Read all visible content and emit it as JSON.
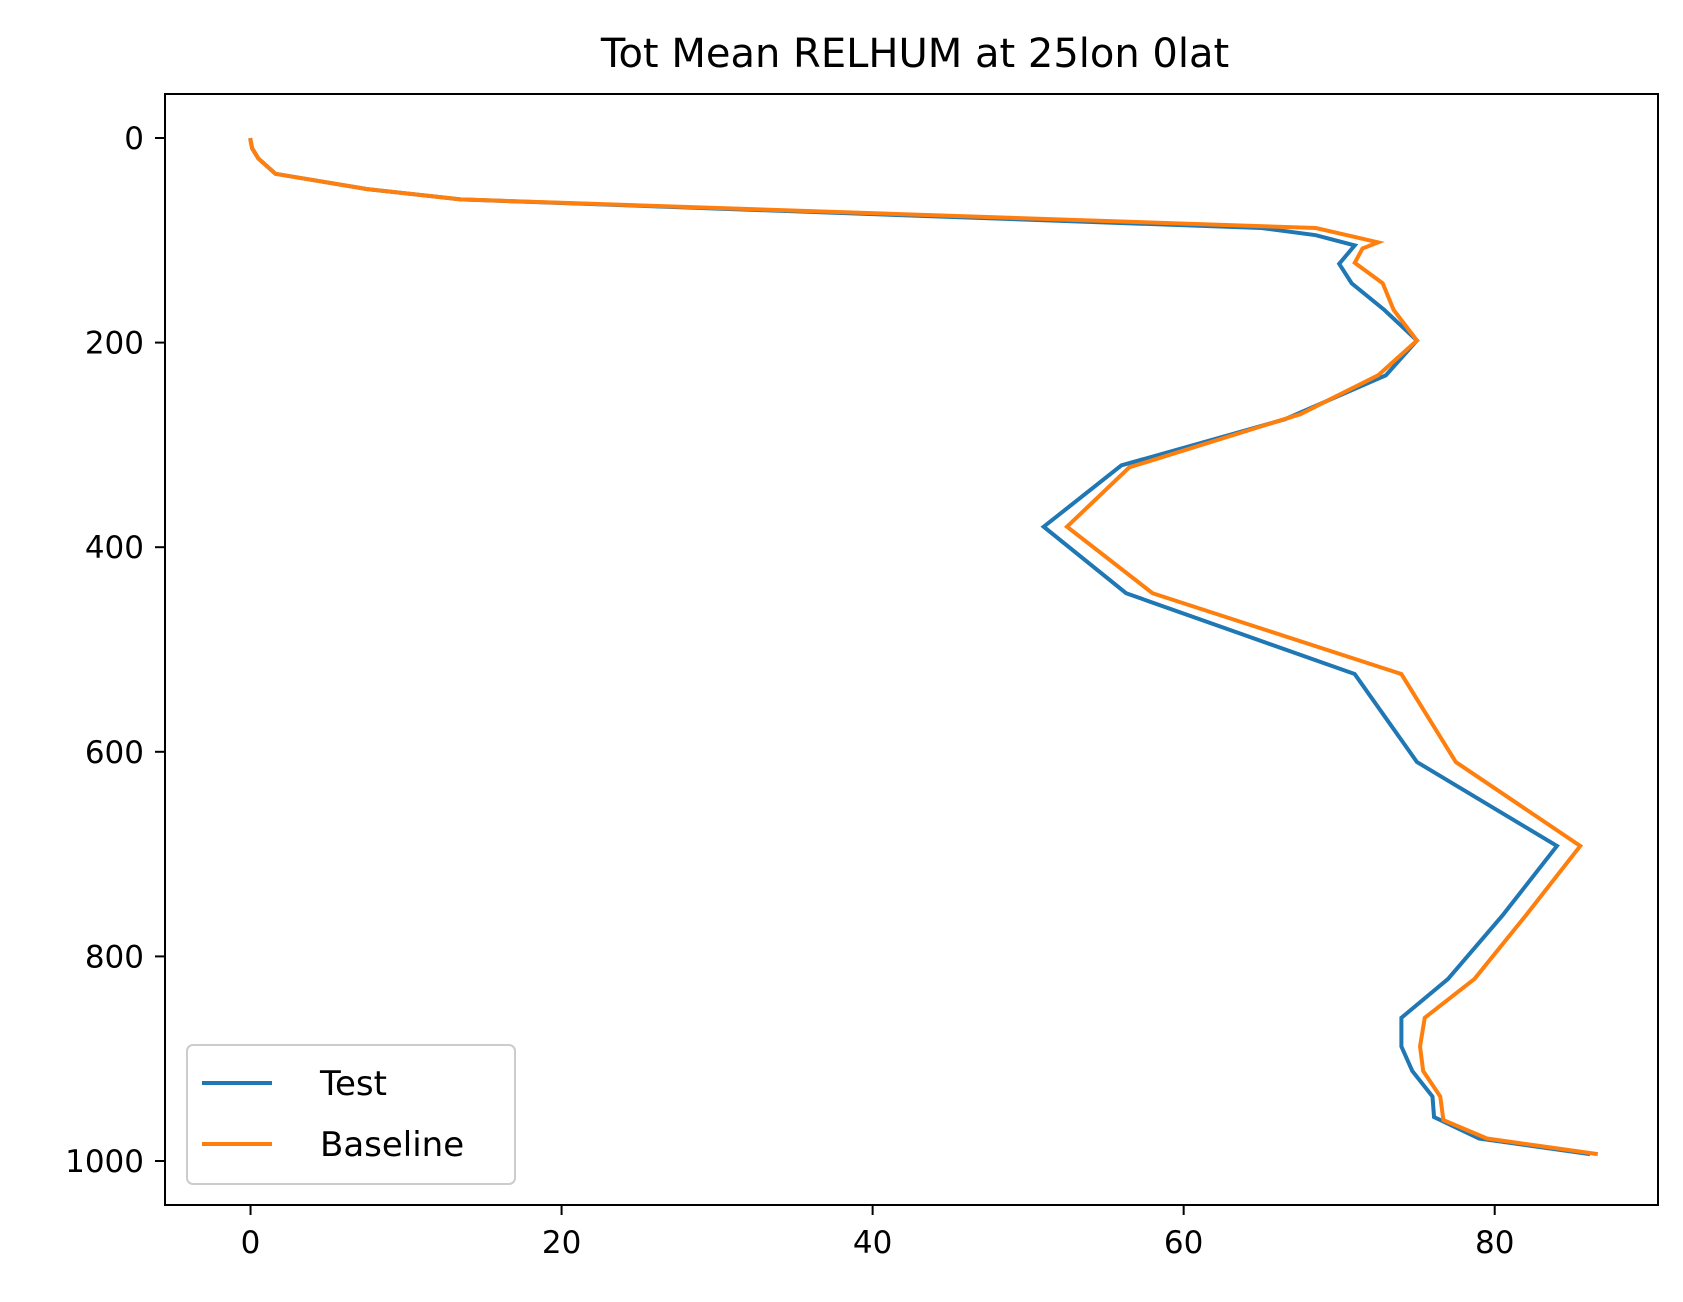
{
  "chart_data": {
    "type": "line",
    "title": "Tot Mean RELHUM at 25lon 0lat",
    "xlabel": "",
    "ylabel": "",
    "xlim": [
      -5.5,
      90.5
    ],
    "ylim": [
      1043,
      -43
    ],
    "y_inverted": true,
    "grid": false,
    "legend_position": "lower-left",
    "xticks": [
      0,
      20,
      40,
      60,
      80
    ],
    "xtick_labels": [
      "0",
      "20",
      "40",
      "60",
      "80"
    ],
    "yticks": [
      0,
      200,
      400,
      600,
      800,
      1000
    ],
    "ytick_labels": [
      "0",
      "200",
      "400",
      "600",
      "800",
      "1000"
    ],
    "series": [
      {
        "name": "Test",
        "color": "#1f77b4",
        "x": [
          0,
          0.1,
          0.5,
          1.6,
          7.5,
          13.5,
          65,
          68.5,
          71,
          70,
          70.8,
          72.9,
          75,
          73,
          66.5,
          56,
          51,
          56.3,
          71,
          75,
          84,
          80.5,
          77,
          74,
          74,
          74.7,
          76,
          76.1,
          79,
          86
        ],
        "y": [
          2,
          10,
          20,
          35,
          50,
          60,
          88,
          95,
          105,
          123,
          142,
          168,
          198,
          232,
          275,
          320,
          380,
          445,
          524,
          610,
          692,
          760,
          822,
          860,
          888,
          912,
          937,
          957,
          978,
          993
        ]
      },
      {
        "name": "Baseline",
        "color": "#ff7f0e",
        "x": [
          0,
          0.1,
          0.5,
          1.6,
          7.5,
          13.5,
          68.5,
          72.5,
          71.5,
          71,
          72.8,
          73.5,
          75,
          72.5,
          67.5,
          56.5,
          52.5,
          58,
          74,
          77.5,
          85.5,
          82,
          78.7,
          75.5,
          75.2,
          75.4,
          76.5,
          76.7,
          79.5,
          86.5
        ],
        "y": [
          2,
          10,
          20,
          35,
          50,
          60,
          88,
          102,
          108,
          122,
          142,
          168,
          198,
          232,
          270,
          322,
          380,
          445,
          524,
          610,
          692,
          760,
          822,
          860,
          888,
          912,
          937,
          960,
          978,
          993
        ]
      }
    ]
  }
}
